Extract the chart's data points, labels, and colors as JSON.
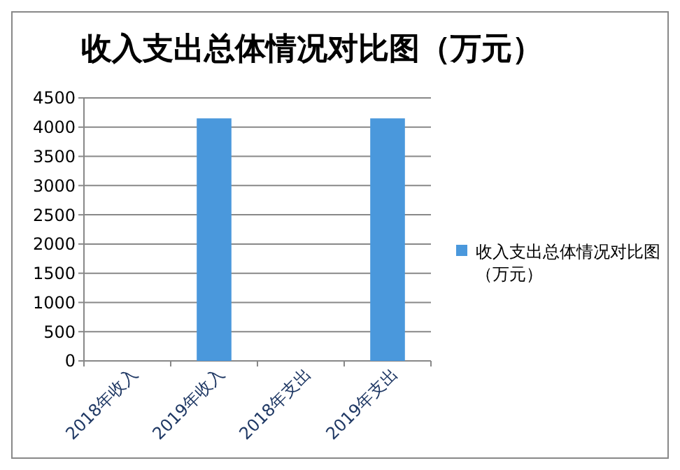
{
  "chart_data": {
    "type": "bar",
    "title": "收入支出总体情况对比图（万元）",
    "categories": [
      "2018年收入",
      "2019年收入",
      "2018年支出",
      "2019年支出"
    ],
    "series": [
      {
        "name": "收入支出总体情况对比图（万元）",
        "color": "#4a98dc",
        "values": [
          0,
          4150,
          0,
          4150
        ]
      }
    ],
    "ylim": [
      0,
      4500
    ],
    "yticks": [
      0,
      500,
      1000,
      1500,
      2000,
      2500,
      3000,
      3500,
      4000,
      4500
    ],
    "grid": "y",
    "legend": "right"
  }
}
